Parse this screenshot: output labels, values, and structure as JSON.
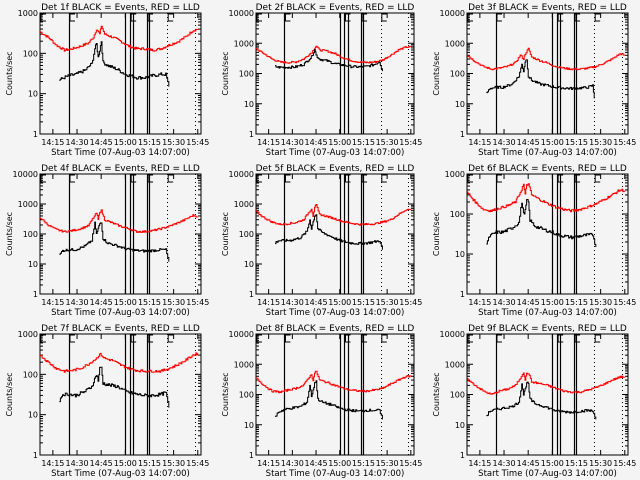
{
  "chart_data": {
    "type": "line",
    "layout": "3x3 grid",
    "shared": {
      "xlabel": "Start Time (07-Aug-03 14:07:00)",
      "ylabel": "Counts/sec",
      "x_start": "14:07",
      "x_range_minutes": [
        0,
        100
      ],
      "x_ticks": [
        {
          "label": "14:15",
          "minute": 8
        },
        {
          "label": "14:30",
          "minute": 23
        },
        {
          "label": "14:45",
          "minute": 38
        },
        {
          "label": "15:00",
          "minute": 53
        },
        {
          "label": "15:15",
          "minute": 68
        },
        {
          "label": "15:30",
          "minute": 83
        },
        {
          "label": "15:45",
          "minute": 98
        }
      ],
      "yscale": "log",
      "series_colors": {
        "events": "#000000",
        "lld": "#ff0000"
      },
      "legend_text": "BLACK = Events, RED = LLD",
      "markers": {
        "solid": [
          18,
          53,
          56,
          58,
          66.5,
          68
        ],
        "dotted": [
          79,
          96
        ],
        "labels": [
          {
            "text": "E",
            "minute": 0
          },
          {
            "text": "F",
            "minute": 18
          },
          {
            "text": "F",
            "minute": 56
          },
          {
            "text": "F",
            "minute": 66.5
          },
          {
            "text": "E",
            "minute": 79
          }
        ]
      }
    },
    "panels": [
      {
        "title": "Det 1f BLACK = Events, RED = LLD",
        "ylim": [
          1,
          1000
        ],
        "y_ticks": [
          "1",
          "10",
          "100",
          "1000"
        ],
        "lld": {
          "x": [
            0,
            5,
            10,
            15,
            20,
            25,
            30,
            33,
            35,
            37,
            38,
            40,
            45,
            50,
            55,
            60,
            65,
            70,
            75,
            80,
            85,
            90,
            95,
            98
          ],
          "y": [
            340,
            250,
            160,
            120,
            130,
            150,
            180,
            250,
            400,
            300,
            480,
            300,
            250,
            200,
            150,
            130,
            130,
            120,
            130,
            160,
            190,
            250,
            370,
            400
          ]
        },
        "events": {
          "x": [
            12,
            15,
            18,
            22,
            28,
            32,
            34,
            35,
            36,
            37,
            38,
            39,
            42,
            48,
            53,
            56,
            60,
            65,
            70,
            75,
            78,
            80
          ],
          "y": [
            22,
            25,
            28,
            30,
            38,
            55,
            130,
            170,
            80,
            120,
            200,
            60,
            50,
            40,
            30,
            28,
            25,
            25,
            28,
            30,
            30,
            15
          ]
        }
      },
      {
        "title": "Det 2f BLACK = Events, RED = LLD",
        "ylim": [
          1,
          10000
        ],
        "y_ticks": [
          "1",
          "10",
          "100",
          "1000",
          "10000"
        ],
        "lld": {
          "x": [
            0,
            5,
            10,
            15,
            20,
            25,
            30,
            35,
            37,
            38,
            40,
            45,
            50,
            55,
            60,
            65,
            70,
            75,
            80,
            85,
            90,
            95,
            98
          ],
          "y": [
            650,
            450,
            300,
            240,
            230,
            240,
            300,
            500,
            700,
            800,
            600,
            550,
            450,
            330,
            270,
            240,
            230,
            240,
            280,
            400,
            600,
            750,
            750
          ]
        },
        "events": {
          "x": [
            12,
            14,
            20,
            25,
            30,
            35,
            37,
            38,
            40,
            45,
            50,
            55,
            60,
            65,
            70,
            75,
            78,
            80
          ],
          "y": [
            170,
            160,
            160,
            165,
            200,
            350,
            650,
            400,
            300,
            260,
            210,
            190,
            170,
            165,
            170,
            200,
            250,
            120
          ]
        }
      },
      {
        "title": "Det 3f BLACK = Events, RED = LLD",
        "ylim": [
          1,
          10000
        ],
        "y_ticks": [
          "1",
          "10",
          "100",
          "1000",
          "10000"
        ],
        "lld": {
          "x": [
            0,
            5,
            10,
            15,
            20,
            25,
            30,
            33,
            35,
            36,
            38,
            40,
            45,
            50,
            55,
            60,
            65,
            70,
            75,
            80,
            85,
            90,
            95,
            98
          ],
          "y": [
            400,
            250,
            170,
            140,
            150,
            170,
            230,
            400,
            300,
            450,
            650,
            350,
            270,
            220,
            170,
            150,
            140,
            140,
            150,
            170,
            220,
            300,
            450,
            400
          ]
        },
        "events": {
          "x": [
            12,
            14,
            18,
            22,
            28,
            32,
            34,
            35,
            36,
            37,
            38,
            40,
            45,
            50,
            55,
            60,
            65,
            70,
            75,
            78,
            79
          ],
          "y": [
            22,
            32,
            35,
            35,
            45,
            80,
            200,
            120,
            250,
            300,
            80,
            60,
            45,
            40,
            35,
            33,
            32,
            33,
            35,
            40,
            15
          ]
        }
      },
      {
        "title": "Det 4f BLACK = Events, RED = LLD",
        "ylim": [
          1,
          10000
        ],
        "y_ticks": [
          "1",
          "10",
          "100",
          "1000",
          "10000"
        ],
        "lld": {
          "x": [
            0,
            5,
            10,
            15,
            20,
            25,
            30,
            33,
            35,
            36,
            37,
            38,
            40,
            45,
            50,
            55,
            60,
            65,
            70,
            75,
            80,
            85,
            90,
            95,
            98
          ],
          "y": [
            350,
            200,
            140,
            120,
            130,
            150,
            190,
            350,
            500,
            300,
            550,
            600,
            300,
            230,
            180,
            150,
            120,
            120,
            130,
            150,
            180,
            230,
            300,
            420,
            380
          ]
        },
        "events": {
          "x": [
            12,
            14,
            18,
            22,
            28,
            32,
            34,
            35,
            36,
            37,
            38,
            39,
            42,
            48,
            53,
            56,
            60,
            65,
            70,
            75,
            78,
            80
          ],
          "y": [
            20,
            28,
            30,
            30,
            40,
            60,
            230,
            100,
            150,
            220,
            250,
            70,
            50,
            40,
            32,
            30,
            28,
            27,
            28,
            30,
            30,
            12
          ]
        }
      },
      {
        "title": "Det 5f BLACK = Events, RED = LLD",
        "ylim": [
          1,
          10000
        ],
        "y_ticks": [
          "1",
          "10",
          "100",
          "1000",
          "10000"
        ],
        "lld": {
          "x": [
            0,
            5,
            10,
            15,
            20,
            25,
            30,
            33,
            35,
            36,
            37,
            38,
            40,
            45,
            50,
            55,
            60,
            65,
            70,
            75,
            80,
            85,
            90,
            95,
            98
          ],
          "y": [
            550,
            350,
            250,
            210,
            220,
            240,
            300,
            500,
            700,
            400,
            800,
            900,
            450,
            380,
            320,
            260,
            230,
            210,
            210,
            220,
            250,
            300,
            450,
            650,
            650
          ]
        },
        "events": {
          "x": [
            12,
            14,
            18,
            22,
            28,
            32,
            34,
            35,
            36,
            37,
            38,
            39,
            42,
            48,
            53,
            56,
            60,
            65,
            70,
            75,
            78,
            80
          ],
          "y": [
            50,
            60,
            60,
            62,
            75,
            120,
            300,
            150,
            250,
            400,
            450,
            150,
            110,
            80,
            60,
            55,
            50,
            48,
            50,
            55,
            60,
            30
          ]
        }
      },
      {
        "title": "Det 6f BLACK = Events, RED = LLD",
        "ylim": [
          1,
          1000
        ],
        "y_ticks": [
          "1",
          "10",
          "100",
          "1000"
        ],
        "lld": {
          "x": [
            0,
            5,
            10,
            15,
            20,
            25,
            30,
            33,
            35,
            36,
            37,
            38,
            40,
            45,
            50,
            55,
            60,
            65,
            70,
            75,
            80,
            85,
            90,
            95,
            98
          ],
          "y": [
            350,
            200,
            130,
            120,
            140,
            160,
            200,
            350,
            550,
            300,
            550,
            550,
            300,
            230,
            180,
            150,
            130,
            120,
            130,
            150,
            180,
            230,
            300,
            400,
            380
          ]
        },
        "events": {
          "x": [
            12,
            14,
            18,
            22,
            28,
            32,
            34,
            35,
            36,
            37,
            38,
            39,
            42,
            48,
            53,
            56,
            60,
            65,
            70,
            75,
            78,
            80
          ],
          "y": [
            18,
            28,
            35,
            35,
            45,
            60,
            200,
            100,
            120,
            220,
            200,
            70,
            50,
            40,
            35,
            30,
            28,
            26,
            28,
            30,
            30,
            15
          ]
        }
      },
      {
        "title": "Det 7f BLACK = Events, RED = LLD",
        "ylim": [
          1,
          1000
        ],
        "y_ticks": [
          "1",
          "10",
          "100",
          "1000"
        ],
        "lld": {
          "x": [
            0,
            5,
            10,
            15,
            20,
            25,
            30,
            35,
            37,
            38,
            40,
            45,
            50,
            55,
            60,
            65,
            70,
            75,
            80,
            85,
            90,
            95,
            98
          ],
          "y": [
            300,
            200,
            140,
            120,
            125,
            140,
            180,
            250,
            320,
            300,
            250,
            220,
            170,
            140,
            125,
            120,
            120,
            120,
            140,
            170,
            220,
            300,
            330
          ]
        },
        "events": {
          "x": [
            12,
            14,
            18,
            22,
            28,
            32,
            35,
            36,
            37,
            38,
            39,
            42,
            48,
            53,
            56,
            60,
            65,
            70,
            75,
            78,
            80
          ],
          "y": [
            22,
            32,
            32,
            30,
            38,
            50,
            100,
            70,
            140,
            150,
            60,
            55,
            50,
            38,
            35,
            32,
            30,
            30,
            32,
            35,
            15
          ]
        }
      },
      {
        "title": "Det 8f BLACK = Events, RED = LLD",
        "ylim": [
          1,
          10000
        ],
        "y_ticks": [
          "1",
          "10",
          "100",
          "1000",
          "10000"
        ],
        "lld": {
          "x": [
            0,
            5,
            10,
            15,
            20,
            25,
            30,
            33,
            35,
            36,
            37,
            38,
            40,
            45,
            50,
            55,
            60,
            65,
            70,
            75,
            80,
            85,
            90,
            95,
            98
          ],
          "y": [
            350,
            200,
            130,
            120,
            140,
            160,
            200,
            350,
            450,
            300,
            500,
            600,
            300,
            250,
            200,
            160,
            140,
            130,
            130,
            140,
            160,
            220,
            300,
            400,
            400
          ]
        },
        "events": {
          "x": [
            12,
            14,
            18,
            22,
            28,
            32,
            34,
            35,
            36,
            37,
            38,
            39,
            42,
            48,
            53,
            56,
            60,
            65,
            70,
            75,
            78,
            80
          ],
          "y": [
            18,
            26,
            32,
            35,
            40,
            55,
            200,
            90,
            130,
            250,
            280,
            70,
            55,
            45,
            35,
            32,
            30,
            28,
            30,
            30,
            30,
            15
          ]
        }
      },
      {
        "title": "Det 9f BLACK = Events, RED = LLD",
        "ylim": [
          1,
          10000
        ],
        "y_ticks": [
          "1",
          "10",
          "100",
          "1000",
          "10000"
        ],
        "lld": {
          "x": [
            0,
            5,
            10,
            15,
            20,
            25,
            30,
            33,
            35,
            36,
            37,
            38,
            40,
            45,
            50,
            55,
            60,
            65,
            70,
            75,
            80,
            85,
            90,
            95,
            98
          ],
          "y": [
            320,
            200,
            130,
            100,
            130,
            150,
            200,
            350,
            550,
            300,
            500,
            500,
            260,
            230,
            200,
            160,
            130,
            120,
            120,
            140,
            170,
            220,
            300,
            380,
            380
          ]
        },
        "events": {
          "x": [
            12,
            14,
            18,
            22,
            28,
            32,
            34,
            35,
            36,
            37,
            38,
            39,
            42,
            48,
            53,
            56,
            60,
            65,
            70,
            75,
            78,
            80
          ],
          "y": [
            20,
            28,
            32,
            35,
            40,
            55,
            230,
            100,
            150,
            250,
            220,
            70,
            50,
            40,
            32,
            28,
            27,
            26,
            28,
            30,
            28,
            15
          ]
        }
      }
    ]
  }
}
